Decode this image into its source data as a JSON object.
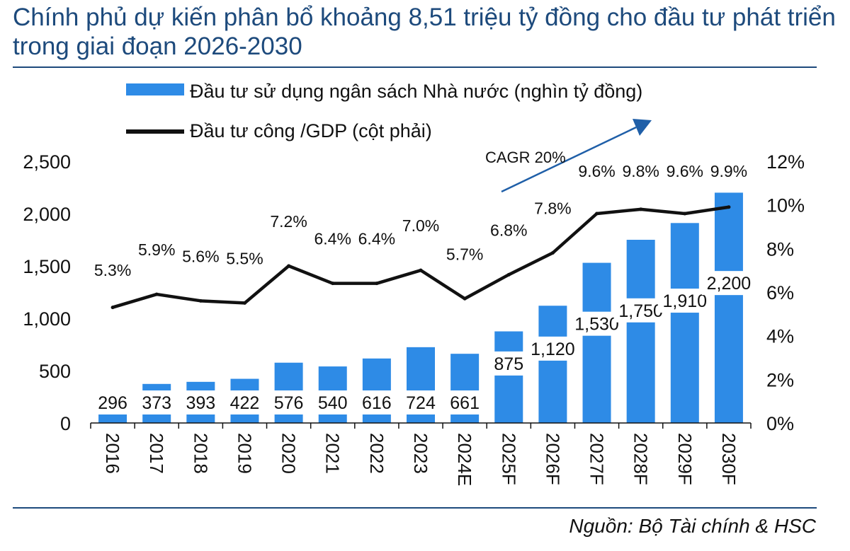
{
  "header": {
    "title": "Chính phủ dự kiến phân bổ khoảng 8,51 triệu tỷ đồng cho đầu tư phát triển trong giai đoạn 2026-2030"
  },
  "footer": {
    "source": "Nguồn: Bộ Tài chính & HSC"
  },
  "colors": {
    "bar": "#2e8be6",
    "line": "#111111",
    "accent": "#1d4a7c",
    "arrow": "#1f5fa8"
  },
  "chart_data": {
    "type": "bar",
    "categories": [
      "2016",
      "2017",
      "2018",
      "2019",
      "2020",
      "2021",
      "2022",
      "2023",
      "2024E",
      "2025F",
      "2026F",
      "2027F",
      "2028F",
      "2029F",
      "2030F"
    ],
    "series": [
      {
        "name": "Đầu tư sử dụng ngân sách Nhà nước (nghìn tỷ đồng)",
        "type": "bar",
        "axis": "left",
        "values": [
          296,
          373,
          393,
          422,
          576,
          540,
          616,
          724,
          661,
          875,
          1120,
          1530,
          1750,
          1910,
          2200
        ],
        "labels": [
          "296",
          "373",
          "393",
          "422",
          "576",
          "540",
          "616",
          "724",
          "661",
          "875",
          "1,120",
          "1,530",
          "1,750",
          "1,910",
          "2,200"
        ]
      },
      {
        "name": "Đầu tư công /GDP (cột phải)",
        "type": "line",
        "axis": "right",
        "values": [
          5.3,
          5.9,
          5.6,
          5.5,
          7.2,
          6.4,
          6.4,
          7.0,
          5.7,
          6.8,
          7.8,
          9.6,
          9.8,
          9.6,
          9.9
        ],
        "labels": [
          "5.3%",
          "5.9%",
          "5.6%",
          "5.5%",
          "7.2%",
          "6.4%",
          "6.4%",
          "7.0%",
          "5.7%",
          "6.8%",
          "7.8%",
          "9.6%",
          "9.8%",
          "9.6%",
          "9.9%"
        ]
      }
    ],
    "y_left": {
      "range": [
        0,
        2500
      ],
      "ticks": [
        "0",
        "500",
        "1,000",
        "1,500",
        "2,000",
        "2,500"
      ]
    },
    "y_right": {
      "range": [
        0,
        12
      ],
      "ticks": [
        "0%",
        "2%",
        "4%",
        "6%",
        "8%",
        "10%",
        "12%"
      ]
    },
    "annotation": "CAGR 20%",
    "legend": "top-left",
    "grid": false
  }
}
